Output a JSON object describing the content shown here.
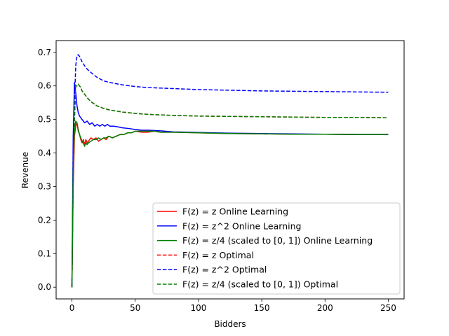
{
  "chart_data": {
    "type": "line",
    "title": "",
    "xlabel": "Bidders",
    "ylabel": "Revenue",
    "xlim": [
      -12.5,
      262.5
    ],
    "ylim": [
      -0.035,
      0.735
    ],
    "xticks": [
      0,
      50,
      100,
      150,
      200,
      250
    ],
    "yticks": [
      0.0,
      0.1,
      0.2,
      0.3,
      0.4,
      0.5,
      0.6,
      0.7
    ],
    "xtick_labels": [
      "0",
      "50",
      "100",
      "150",
      "200",
      "250"
    ],
    "ytick_labels": [
      "0.0",
      "0.1",
      "0.2",
      "0.3",
      "0.4",
      "0.5",
      "0.6",
      "0.7"
    ],
    "grid": false,
    "legend_position": "lower-right",
    "series": [
      {
        "name": "F(z) = z Online Learning",
        "color": "#ff0000",
        "style": "solid",
        "x": [
          0,
          1,
          2,
          3,
          4,
          5,
          6,
          7,
          8,
          9,
          10,
          11,
          12,
          13,
          14,
          15,
          17,
          19,
          21,
          23,
          25,
          27,
          29,
          32,
          35,
          38,
          41,
          44,
          47,
          50,
          55,
          60,
          65,
          70,
          80,
          90,
          100,
          125,
          150,
          175,
          200,
          225,
          250
        ],
        "y": [
          0.0,
          0.3,
          0.45,
          0.48,
          0.49,
          0.47,
          0.455,
          0.44,
          0.43,
          0.44,
          0.425,
          0.44,
          0.43,
          0.435,
          0.44,
          0.445,
          0.44,
          0.445,
          0.435,
          0.44,
          0.445,
          0.44,
          0.45,
          0.445,
          0.45,
          0.455,
          0.455,
          0.46,
          0.46,
          0.465,
          0.462,
          0.462,
          0.465,
          0.462,
          0.462,
          0.461,
          0.46,
          0.458,
          0.457,
          0.456,
          0.456,
          0.455,
          0.455
        ]
      },
      {
        "name": "F(z) = z^2 Online Learning",
        "color": "#0000ff",
        "style": "solid",
        "x": [
          0,
          1,
          2,
          3,
          4,
          5,
          6,
          7,
          8,
          9,
          10,
          12,
          14,
          16,
          18,
          20,
          22,
          24,
          26,
          28,
          30,
          33,
          36,
          40,
          45,
          50,
          55,
          60,
          70,
          80,
          100,
          125,
          150,
          175,
          200,
          225,
          250
        ],
        "y": [
          0.0,
          0.45,
          0.61,
          0.58,
          0.54,
          0.52,
          0.51,
          0.505,
          0.5,
          0.495,
          0.49,
          0.495,
          0.485,
          0.49,
          0.48,
          0.485,
          0.48,
          0.485,
          0.48,
          0.485,
          0.48,
          0.48,
          0.478,
          0.475,
          0.473,
          0.47,
          0.468,
          0.468,
          0.466,
          0.463,
          0.461,
          0.459,
          0.458,
          0.457,
          0.456,
          0.455,
          0.455
        ]
      },
      {
        "name": "F(z) = z/4 (scaled to [0, 1]) Online Learning",
        "color": "#008000",
        "style": "solid",
        "x": [
          0,
          1,
          2,
          3,
          4,
          5,
          6,
          7,
          8,
          9,
          10,
          11,
          12,
          13,
          15,
          17,
          19,
          21,
          23,
          25,
          27,
          29,
          32,
          35,
          38,
          41,
          44,
          47,
          50,
          55,
          60,
          65,
          70,
          80,
          90,
          100,
          125,
          150,
          175,
          200,
          225,
          250
        ],
        "y": [
          0.0,
          0.38,
          0.47,
          0.495,
          0.49,
          0.465,
          0.455,
          0.445,
          0.435,
          0.43,
          0.42,
          0.43,
          0.425,
          0.43,
          0.435,
          0.44,
          0.44,
          0.445,
          0.44,
          0.445,
          0.445,
          0.45,
          0.445,
          0.45,
          0.455,
          0.455,
          0.46,
          0.46,
          0.465,
          0.465,
          0.465,
          0.465,
          0.462,
          0.462,
          0.461,
          0.46,
          0.458,
          0.457,
          0.456,
          0.456,
          0.455,
          0.455
        ]
      },
      {
        "name": "F(z) = z Optimal",
        "color": "#ff0000",
        "style": "dashed",
        "x": [
          0,
          1,
          2,
          3,
          4,
          5,
          6,
          7,
          8,
          10,
          12,
          15,
          20,
          25,
          30,
          40,
          50,
          60,
          80,
          100,
          125,
          150,
          175,
          200,
          225,
          250
        ],
        "y": [
          0.0,
          0.333,
          0.5,
          0.6,
          0.6,
          0.605,
          0.6,
          0.595,
          0.585,
          0.575,
          0.565,
          0.553,
          0.54,
          0.533,
          0.528,
          0.522,
          0.518,
          0.515,
          0.512,
          0.51,
          0.509,
          0.508,
          0.507,
          0.506,
          0.506,
          0.505
        ]
      },
      {
        "name": "F(z) = z^2 Optimal",
        "color": "#0000ff",
        "style": "dashed",
        "x": [
          0,
          1,
          2,
          3,
          4,
          5,
          6,
          7,
          8,
          10,
          12,
          15,
          20,
          25,
          30,
          40,
          50,
          60,
          80,
          100,
          125,
          150,
          175,
          200,
          225,
          250
        ],
        "y": [
          0.0,
          0.4,
          0.55,
          0.66,
          0.69,
          0.693,
          0.688,
          0.68,
          0.672,
          0.66,
          0.65,
          0.64,
          0.625,
          0.615,
          0.61,
          0.603,
          0.598,
          0.595,
          0.592,
          0.589,
          0.587,
          0.585,
          0.584,
          0.583,
          0.582,
          0.581
        ]
      },
      {
        "name": "F(z) = z/4 (scaled to [0, 1]) Optimal",
        "color": "#008000",
        "style": "dashed",
        "x": [
          0,
          1,
          2,
          3,
          4,
          5,
          6,
          7,
          8,
          10,
          12,
          15,
          20,
          25,
          30,
          40,
          50,
          60,
          80,
          100,
          125,
          150,
          175,
          200,
          225,
          250
        ],
        "y": [
          0.0,
          0.333,
          0.5,
          0.6,
          0.6,
          0.605,
          0.6,
          0.595,
          0.585,
          0.575,
          0.565,
          0.553,
          0.54,
          0.533,
          0.528,
          0.522,
          0.518,
          0.515,
          0.512,
          0.51,
          0.509,
          0.508,
          0.507,
          0.506,
          0.506,
          0.505
        ]
      }
    ]
  }
}
